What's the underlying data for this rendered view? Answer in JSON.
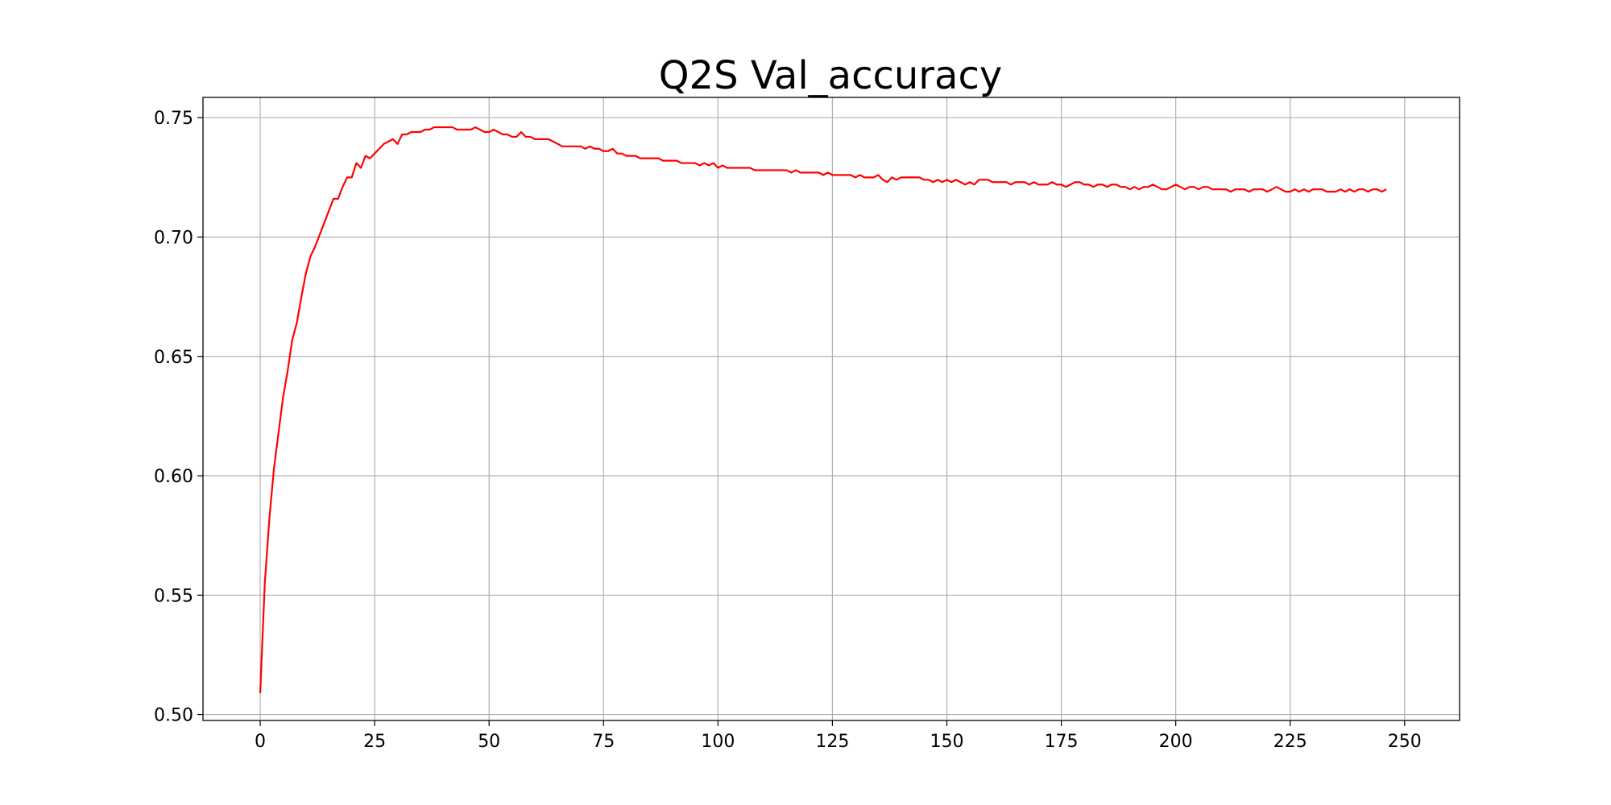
{
  "chart_data": {
    "type": "line",
    "title": "Q2S Val_accuracy",
    "xlabel": "",
    "ylabel": "",
    "xlim": [
      -12.5,
      262
    ],
    "ylim": [
      0.4975,
      0.7585
    ],
    "xticks": [
      0,
      25,
      50,
      75,
      100,
      125,
      150,
      175,
      200,
      225,
      250
    ],
    "xtick_labels": [
      "0",
      "25",
      "50",
      "75",
      "100",
      "125",
      "150",
      "175",
      "200",
      "225",
      "250"
    ],
    "yticks": [
      0.5,
      0.55,
      0.6,
      0.65,
      0.7,
      0.75
    ],
    "ytick_labels": [
      "0.50",
      "0.55",
      "0.60",
      "0.65",
      "0.70",
      "0.75"
    ],
    "grid": true,
    "legend": "none",
    "color": "#ff0000",
    "series": [
      {
        "x_start": 0,
        "x_step": 1,
        "values": [
          0.509,
          0.555,
          0.582,
          0.603,
          0.618,
          0.633,
          0.644,
          0.657,
          0.664,
          0.675,
          0.685,
          0.692,
          0.696,
          0.701,
          0.706,
          0.711,
          0.716,
          0.716,
          0.721,
          0.725,
          0.725,
          0.731,
          0.729,
          0.734,
          0.733,
          0.735,
          0.737,
          0.739,
          0.74,
          0.741,
          0.739,
          0.743,
          0.743,
          0.744,
          0.744,
          0.744,
          0.745,
          0.745,
          0.746,
          0.746,
          0.746,
          0.746,
          0.746,
          0.745,
          0.745,
          0.745,
          0.745,
          0.746,
          0.745,
          0.744,
          0.744,
          0.745,
          0.744,
          0.743,
          0.743,
          0.742,
          0.742,
          0.744,
          0.742,
          0.742,
          0.741,
          0.741,
          0.741,
          0.741,
          0.74,
          0.739,
          0.738,
          0.738,
          0.738,
          0.738,
          0.738,
          0.737,
          0.738,
          0.737,
          0.737,
          0.736,
          0.736,
          0.737,
          0.735,
          0.735,
          0.734,
          0.734,
          0.734,
          0.733,
          0.733,
          0.733,
          0.733,
          0.733,
          0.732,
          0.732,
          0.732,
          0.732,
          0.731,
          0.731,
          0.731,
          0.731,
          0.73,
          0.731,
          0.73,
          0.731,
          0.729,
          0.73,
          0.729,
          0.729,
          0.729,
          0.729,
          0.729,
          0.729,
          0.728,
          0.728,
          0.728,
          0.728,
          0.728,
          0.728,
          0.728,
          0.728,
          0.727,
          0.728,
          0.727,
          0.727,
          0.727,
          0.727,
          0.727,
          0.726,
          0.727,
          0.726,
          0.726,
          0.726,
          0.726,
          0.726,
          0.725,
          0.726,
          0.725,
          0.725,
          0.725,
          0.726,
          0.724,
          0.723,
          0.725,
          0.724,
          0.725,
          0.725,
          0.725,
          0.725,
          0.725,
          0.724,
          0.724,
          0.723,
          0.724,
          0.723,
          0.724,
          0.723,
          0.724,
          0.723,
          0.722,
          0.723,
          0.722,
          0.724,
          0.724,
          0.724,
          0.723,
          0.723,
          0.723,
          0.723,
          0.722,
          0.723,
          0.723,
          0.723,
          0.722,
          0.723,
          0.722,
          0.722,
          0.722,
          0.723,
          0.722,
          0.722,
          0.721,
          0.722,
          0.723,
          0.723,
          0.722,
          0.722,
          0.721,
          0.722,
          0.722,
          0.721,
          0.722,
          0.722,
          0.721,
          0.721,
          0.72,
          0.721,
          0.72,
          0.721,
          0.721,
          0.722,
          0.721,
          0.72,
          0.72,
          0.721,
          0.722,
          0.721,
          0.72,
          0.721,
          0.721,
          0.72,
          0.721,
          0.721,
          0.72,
          0.72,
          0.72,
          0.72,
          0.719,
          0.72,
          0.72,
          0.72,
          0.719,
          0.72,
          0.72,
          0.72,
          0.719,
          0.72,
          0.721,
          0.72,
          0.719,
          0.719,
          0.72,
          0.719,
          0.72,
          0.719,
          0.72,
          0.72,
          0.72,
          0.719,
          0.719,
          0.719,
          0.72,
          0.719,
          0.72,
          0.719,
          0.72,
          0.72,
          0.719,
          0.72,
          0.72,
          0.719,
          0.72
        ]
      }
    ]
  }
}
